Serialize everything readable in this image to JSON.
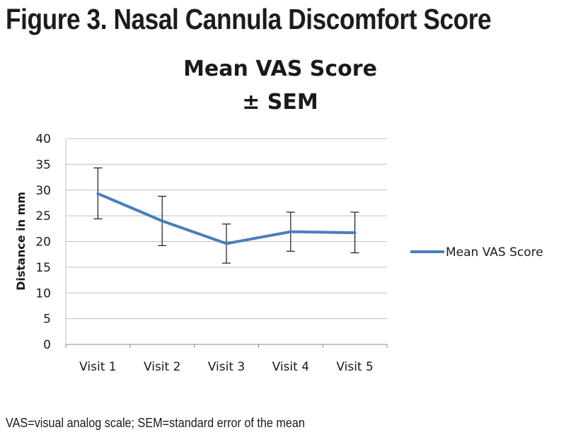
{
  "figure": {
    "heading": "Figure 3. Nasal Cannula Discomfort Score",
    "footnote": "VAS=visual analog scale; SEM=standard error of the mean"
  },
  "colors": {
    "series": "#4a7ebb",
    "grid": "#c0c0c0",
    "axis": "#888888",
    "error_bar": "#1a1a1a"
  },
  "chart_data": {
    "type": "line",
    "title_lines": [
      "Mean VAS Score",
      "± SEM"
    ],
    "xlabel": "",
    "ylabel": "Distance in mm",
    "categories": [
      "Visit 1",
      "Visit 2",
      "Visit 3",
      "Visit 4",
      "Visit 5"
    ],
    "yticks": [
      0,
      5,
      10,
      15,
      20,
      25,
      30,
      35,
      40
    ],
    "ylim": [
      0,
      40
    ],
    "grid": true,
    "legend_position": "right",
    "series": [
      {
        "name": "Mean VAS Score",
        "values": [
          29.3,
          24.0,
          19.6,
          21.9,
          21.7
        ],
        "error_low": [
          24.4,
          19.2,
          15.8,
          18.1,
          17.8
        ],
        "error_high": [
          34.3,
          28.8,
          23.4,
          25.7,
          25.7
        ]
      }
    ]
  }
}
